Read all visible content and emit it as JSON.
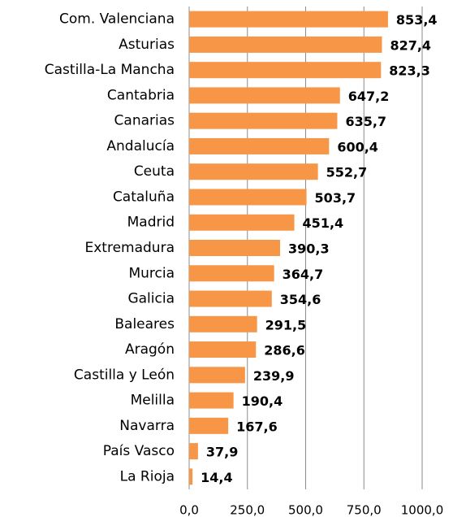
{
  "chart_data": {
    "type": "bar",
    "orientation": "horizontal",
    "categories": [
      "Com. Valenciana",
      "Asturias",
      "Castilla-La Mancha",
      "Cantabria",
      "Canarias",
      "Andalucía",
      "Ceuta",
      "Cataluña",
      "Madrid",
      "Extremadura",
      "Murcia",
      "Galicia",
      "Baleares",
      "Aragón",
      "Castilla y León",
      "Melilla",
      "Navarra",
      "País Vasco",
      "La Rioja"
    ],
    "values": [
      853.4,
      827.4,
      823.3,
      647.2,
      635.7,
      600.4,
      552.7,
      503.7,
      451.4,
      390.3,
      364.7,
      354.6,
      291.5,
      286.6,
      239.9,
      190.4,
      167.6,
      37.9,
      14.4
    ],
    "value_labels": [
      "853,4",
      "827,4",
      "823,3",
      "647,2",
      "635,7",
      "600,4",
      "552,7",
      "503,7",
      "451,4",
      "390,3",
      "364,7",
      "354,6",
      "291,5",
      "286,6",
      "239,9",
      "190,4",
      "167,6",
      "37,9",
      "14,4"
    ],
    "color": "#f79646",
    "xlim": [
      0,
      1000
    ],
    "xticks": [
      {
        "value": 0,
        "label": "0,0"
      },
      {
        "value": 250,
        "label": "250,0"
      },
      {
        "value": 500,
        "label": "500,0"
      },
      {
        "value": 750,
        "label": "750,0"
      },
      {
        "value": 1000,
        "label": "1000,0"
      }
    ],
    "grid": true
  }
}
